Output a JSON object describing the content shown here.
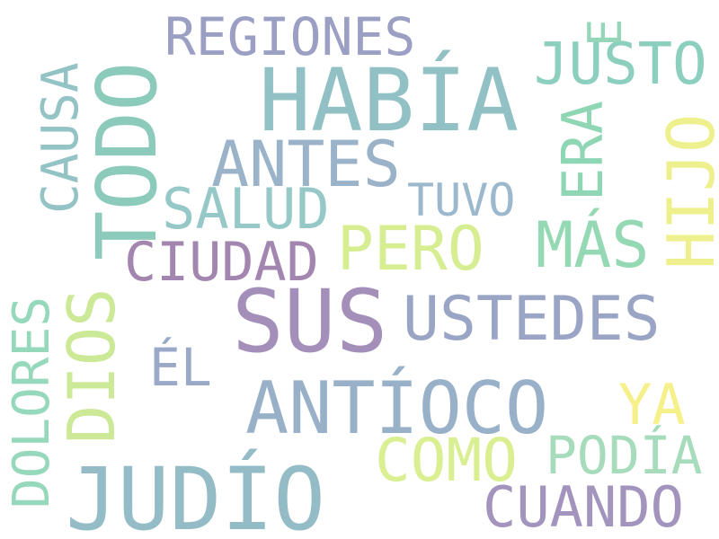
{
  "words": {
    "regiones": {
      "text": "REGIONES",
      "color": "#9b9fc4"
    },
    "habia": {
      "text": "HABÍA",
      "color": "#91c1c4"
    },
    "justo": {
      "text": "JUSTO",
      "color": "#8ccfbf"
    },
    "e": {
      "text": "E",
      "color": "#94d6b7"
    },
    "era": {
      "text": "ERA",
      "color": "#8fd6b4"
    },
    "hijo": {
      "text": "HIJO",
      "color": "#eef08e"
    },
    "todo": {
      "text": "TODO",
      "color": "#8ccbbb"
    },
    "causa": {
      "text": "CAUSA",
      "color": "#93c3c4"
    },
    "antes": {
      "text": "ANTES",
      "color": "#9bb3c9"
    },
    "salud": {
      "text": "SALUD",
      "color": "#96c8c8"
    },
    "tuvo": {
      "text": "TUVO",
      "color": "#9bb8cd"
    },
    "pero": {
      "text": "PERO",
      "color": "#d6ee91"
    },
    "mas": {
      "text": "MÁS",
      "color": "#94d8b4"
    },
    "ciudad": {
      "text": "CIUDAD",
      "color": "#a386b0"
    },
    "sus": {
      "text": "SUS",
      "color": "#a48fba"
    },
    "ustedes": {
      "text": "USTEDES",
      "color": "#9aa5c6"
    },
    "el": {
      "text": "ÉL",
      "color": "#9aa9c8"
    },
    "antioco": {
      "text": "ANTÍOCO",
      "color": "#98b1c8"
    },
    "ya": {
      "text": "YA",
      "color": "#f6f08a"
    },
    "como": {
      "text": "COMO",
      "color": "#d9ef92"
    },
    "podia": {
      "text": "PODÍA",
      "color": "#a6dcbb"
    },
    "judio": {
      "text": "JUDÍO",
      "color": "#93bcc7"
    },
    "cuando": {
      "text": "CUANDO",
      "color": "#a294bd"
    },
    "dios": {
      "text": "DIOS",
      "color": "#cbe996"
    },
    "dolores": {
      "text": "DOLORES",
      "color": "#96d8bb"
    }
  }
}
